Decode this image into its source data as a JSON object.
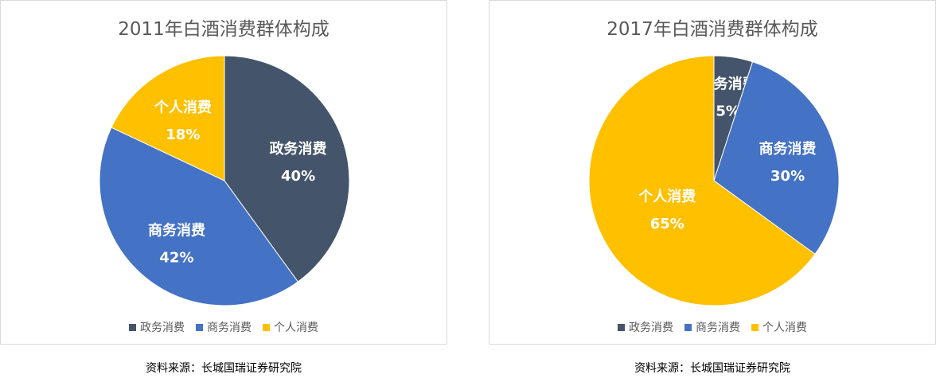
{
  "colors": {
    "gov": "#44546A",
    "business": "#4472C4",
    "personal": "#FFC000"
  },
  "chart_data": [
    {
      "type": "pie",
      "title": "2011年白酒消费群体构成",
      "categories": [
        "政务消费",
        "商务消费",
        "个人消费"
      ],
      "values": [
        40,
        42,
        18
      ],
      "value_labels": [
        "40%",
        "42%",
        "18%"
      ],
      "legend": "bottom"
    },
    {
      "type": "pie",
      "title": "2017年白酒消费群体构成",
      "categories": [
        "政务消费",
        "商务消费",
        "个人消费"
      ],
      "values": [
        5,
        30,
        65
      ],
      "value_labels": [
        "5%",
        "30%",
        "65%"
      ],
      "legend": "bottom"
    }
  ],
  "source_note": "资料来源：长城国瑞证券研究院"
}
